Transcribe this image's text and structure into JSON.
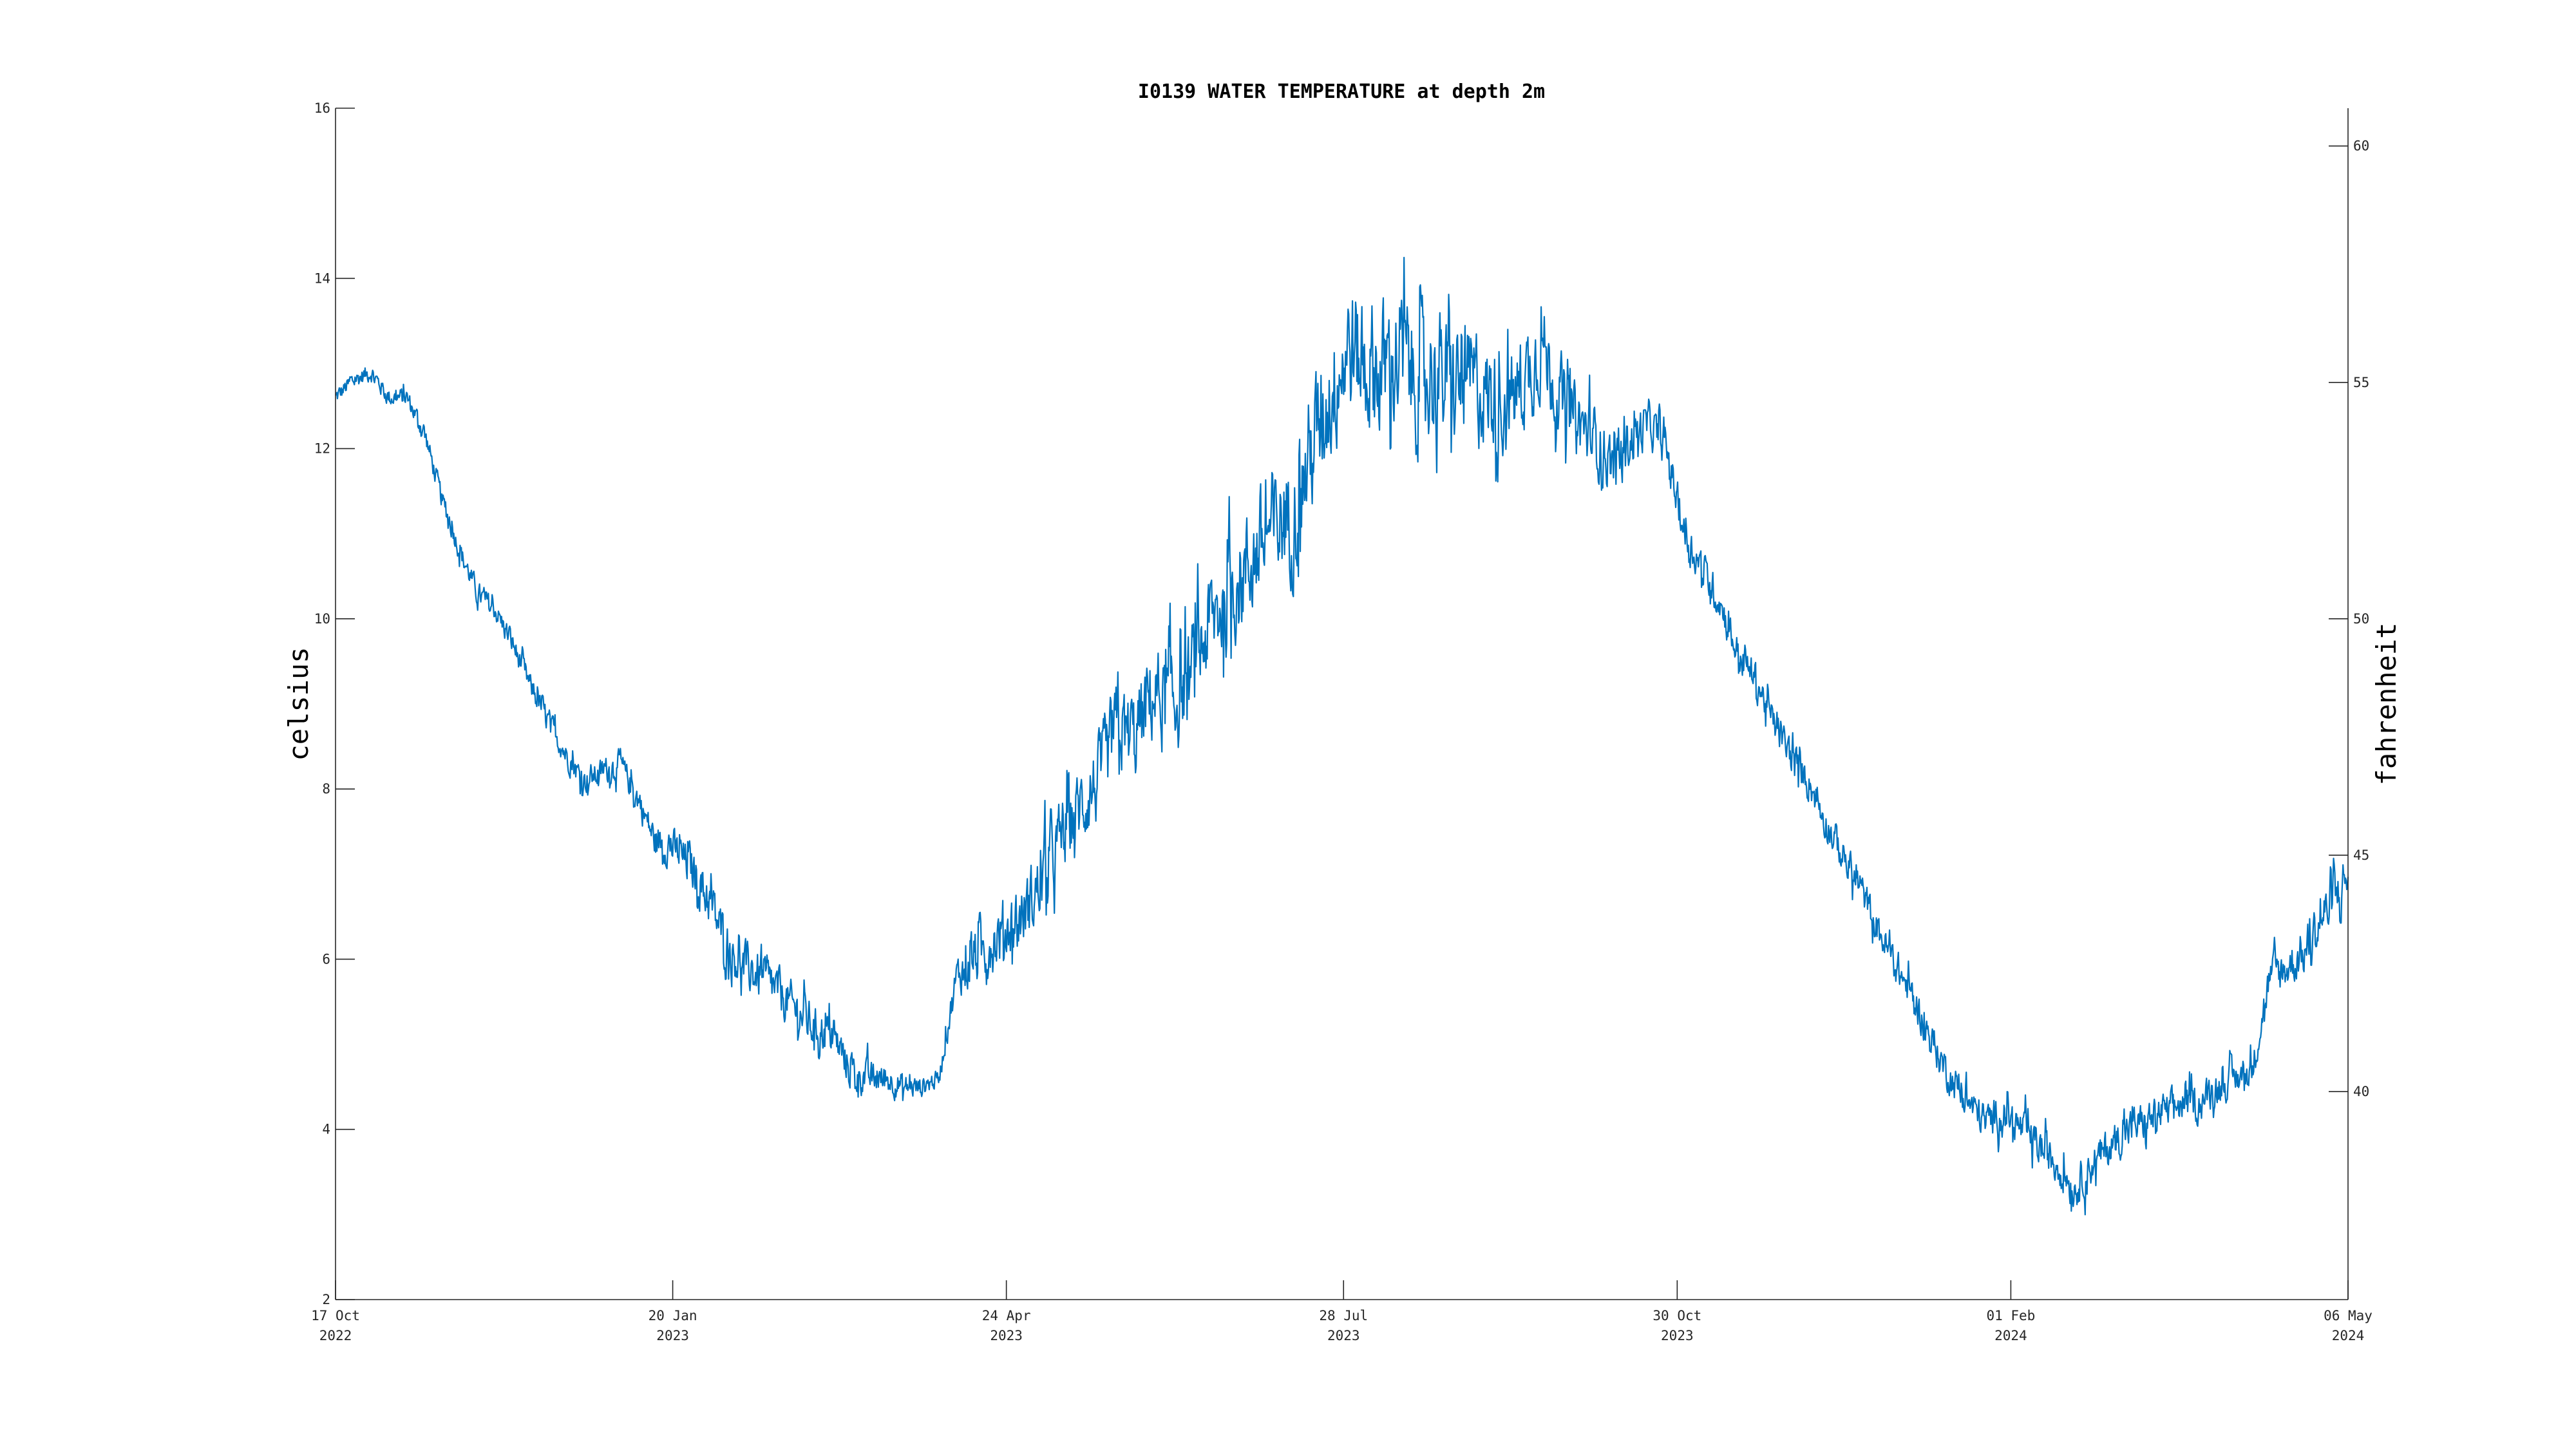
{
  "chart_data": {
    "type": "line",
    "title": "I0139 WATER TEMPERATURE at depth 2m",
    "ylabel": "celsius",
    "y2label": "fahrenheit",
    "ylim": [
      2,
      16
    ],
    "y2lim": [
      35.6,
      60.8
    ],
    "yticks": [
      2,
      4,
      6,
      8,
      10,
      12,
      14,
      16
    ],
    "y2ticks": [
      40,
      45,
      50,
      55,
      60
    ],
    "xlim": [
      "2022-10-17",
      "2024-05-06"
    ],
    "xticks": [
      {
        "date": "2022-10-17",
        "label1": "17 Oct",
        "label2": "2022"
      },
      {
        "date": "2023-01-20",
        "label1": "20 Jan",
        "label2": "2023"
      },
      {
        "date": "2023-04-24",
        "label1": "24 Apr",
        "label2": "2023"
      },
      {
        "date": "2023-07-28",
        "label1": "28 Jul",
        "label2": "2023"
      },
      {
        "date": "2023-10-30",
        "label1": "30 Oct",
        "label2": "2023"
      },
      {
        "date": "2024-02-01",
        "label1": "01 Feb",
        "label2": "2024"
      },
      {
        "date": "2024-05-06",
        "label1": "06 May",
        "label2": "2024"
      }
    ],
    "grid": false,
    "series": [
      {
        "color": "#0072BD",
        "points": [
          [
            "2022-10-17",
            12.6
          ],
          [
            "2022-10-22",
            12.8
          ],
          [
            "2022-10-27",
            12.9
          ],
          [
            "2022-11-01",
            12.6
          ],
          [
            "2022-11-06",
            12.6
          ],
          [
            "2022-11-11",
            12.2
          ],
          [
            "2022-11-16",
            11.4
          ],
          [
            "2022-11-21",
            10.8
          ],
          [
            "2022-11-26",
            10.3
          ],
          [
            "2022-12-01",
            10.1
          ],
          [
            "2022-12-06",
            9.7
          ],
          [
            "2022-12-11",
            9.2
          ],
          [
            "2022-12-16",
            8.8
          ],
          [
            "2022-12-21",
            8.4
          ],
          [
            "2022-12-26",
            8.1
          ],
          [
            "2022-12-31",
            8.2
          ],
          [
            "2023-01-05",
            8.3
          ],
          [
            "2023-01-10",
            7.9
          ],
          [
            "2023-01-15",
            7.4
          ],
          [
            "2023-01-20",
            7.3
          ],
          [
            "2023-01-25",
            7.1
          ],
          [
            "2023-01-30",
            6.7
          ],
          [
            "2023-02-04",
            6.2
          ],
          [
            "2023-02-09",
            5.9
          ],
          [
            "2023-02-14",
            5.8
          ],
          [
            "2023-02-19",
            5.6
          ],
          [
            "2023-02-24",
            5.4
          ],
          [
            "2023-03-01",
            5.2
          ],
          [
            "2023-03-06",
            5.1
          ],
          [
            "2023-03-11",
            4.7
          ],
          [
            "2023-03-16",
            4.6
          ],
          [
            "2023-03-21",
            4.6
          ],
          [
            "2023-03-26",
            4.5
          ],
          [
            "2023-03-31",
            4.5
          ],
          [
            "2023-04-05",
            4.6
          ],
          [
            "2023-04-10",
            5.8
          ],
          [
            "2023-04-15",
            6.0
          ],
          [
            "2023-04-20",
            6.2
          ],
          [
            "2023-04-25",
            6.4
          ],
          [
            "2023-04-30",
            6.6
          ],
          [
            "2023-05-05",
            7.0
          ],
          [
            "2023-05-10",
            7.5
          ],
          [
            "2023-05-15",
            7.8
          ],
          [
            "2023-05-20",
            8.1
          ],
          [
            "2023-05-25",
            8.7
          ],
          [
            "2023-05-30",
            8.6
          ],
          [
            "2023-06-04",
            9.1
          ],
          [
            "2023-06-09",
            9.0
          ],
          [
            "2023-06-14",
            9.2
          ],
          [
            "2023-06-19",
            9.8
          ],
          [
            "2023-06-24",
            10.2
          ],
          [
            "2023-06-29",
            10.5
          ],
          [
            "2023-07-04",
            10.8
          ],
          [
            "2023-07-09",
            11.1
          ],
          [
            "2023-07-14",
            11.2
          ],
          [
            "2023-07-19",
            12.0
          ],
          [
            "2023-07-24",
            12.6
          ],
          [
            "2023-07-29",
            13.2
          ],
          [
            "2023-08-03",
            13.0
          ],
          [
            "2023-08-08",
            12.9
          ],
          [
            "2023-08-13",
            13.1
          ],
          [
            "2023-08-18",
            12.8
          ],
          [
            "2023-08-23",
            12.9
          ],
          [
            "2023-08-28",
            12.7
          ],
          [
            "2023-09-02",
            12.8
          ],
          [
            "2023-09-07",
            12.6
          ],
          [
            "2023-09-12",
            12.5
          ],
          [
            "2023-09-17",
            12.8
          ],
          [
            "2023-09-22",
            13.2
          ],
          [
            "2023-09-27",
            12.6
          ],
          [
            "2023-10-02",
            12.3
          ],
          [
            "2023-10-07",
            12.1
          ],
          [
            "2023-10-12",
            11.8
          ],
          [
            "2023-10-17",
            12.1
          ],
          [
            "2023-10-22",
            12.3
          ],
          [
            "2023-10-27",
            12.0
          ],
          [
            "2023-11-01",
            11.0
          ],
          [
            "2023-11-06",
            10.6
          ],
          [
            "2023-11-11",
            10.2
          ],
          [
            "2023-11-16",
            9.6
          ],
          [
            "2023-11-21",
            9.3
          ],
          [
            "2023-11-26",
            8.8
          ],
          [
            "2023-12-01",
            8.4
          ],
          [
            "2023-12-06",
            8.1
          ],
          [
            "2023-12-11",
            7.6
          ],
          [
            "2023-12-16",
            7.2
          ],
          [
            "2023-12-21",
            6.8
          ],
          [
            "2023-12-26",
            6.3
          ],
          [
            "2023-12-31",
            5.9
          ],
          [
            "2024-01-05",
            5.5
          ],
          [
            "2024-01-10",
            5.0
          ],
          [
            "2024-01-15",
            4.6
          ],
          [
            "2024-01-20",
            4.3
          ],
          [
            "2024-01-25",
            4.1
          ],
          [
            "2024-01-30",
            4.2
          ],
          [
            "2024-02-04",
            4.0
          ],
          [
            "2024-02-09",
            3.8
          ],
          [
            "2024-02-14",
            3.6
          ],
          [
            "2024-02-19",
            3.3
          ],
          [
            "2024-02-24",
            3.6
          ],
          [
            "2024-02-29",
            3.8
          ],
          [
            "2024-03-05",
            4.0
          ],
          [
            "2024-03-10",
            4.1
          ],
          [
            "2024-03-15",
            4.2
          ],
          [
            "2024-03-20",
            4.3
          ],
          [
            "2024-03-25",
            4.3
          ],
          [
            "2024-03-30",
            4.5
          ],
          [
            "2024-04-04",
            4.6
          ],
          [
            "2024-04-09",
            4.7
          ],
          [
            "2024-04-14",
            5.8
          ],
          [
            "2024-04-19",
            5.9
          ],
          [
            "2024-04-24",
            6.1
          ],
          [
            "2024-04-29",
            6.5
          ],
          [
            "2024-05-04",
            6.8
          ],
          [
            "2024-05-06",
            7.0
          ]
        ],
        "noise_amplitude": [
          [
            "2022-10-17",
            0.15
          ],
          [
            "2023-01-10",
            0.25
          ],
          [
            "2023-02-01",
            0.45
          ],
          [
            "2023-03-10",
            0.35
          ],
          [
            "2023-04-05",
            0.15
          ],
          [
            "2023-04-15",
            0.5
          ],
          [
            "2023-06-01",
            0.8
          ],
          [
            "2023-07-20",
            1.1
          ],
          [
            "2023-08-15",
            1.2
          ],
          [
            "2023-09-20",
            0.8
          ],
          [
            "2023-10-25",
            0.35
          ],
          [
            "2023-11-20",
            0.3
          ],
          [
            "2024-01-10",
            0.3
          ],
          [
            "2024-02-20",
            0.35
          ],
          [
            "2024-04-10",
            0.3
          ],
          [
            "2024-05-06",
            0.5
          ]
        ]
      }
    ]
  }
}
